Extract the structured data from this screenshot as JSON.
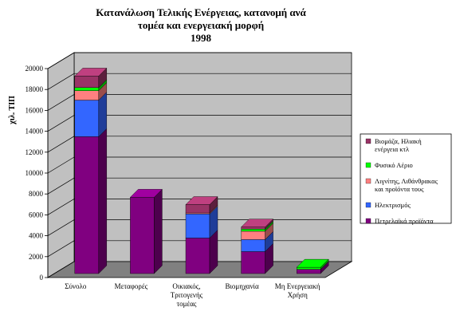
{
  "chart_data": {
    "type": "bar",
    "stacked": true,
    "three_d": true,
    "title_lines": [
      "Κατανάλωση Τελικής Ενέργειας, κατανομή ανά",
      "τομέα και ενεργειακή μορφή",
      "1998"
    ],
    "xlabel": "",
    "ylabel": "χιλ. ΤΙΠ",
    "ylim": [
      0,
      20000
    ],
    "yticks": [
      0,
      2000,
      4000,
      6000,
      8000,
      10000,
      12000,
      14000,
      16000,
      18000,
      20000
    ],
    "grid": true,
    "legend_position": "right",
    "categories": [
      [
        "Σύνολο"
      ],
      [
        "Μεταφορές"
      ],
      [
        "Οικιακός,",
        "Τριτογενής",
        "τομέας"
      ],
      [
        "Βιομηχανία"
      ],
      [
        "Μη Ενεργειακή",
        "Χρήση"
      ]
    ],
    "series": [
      {
        "name": "Πετρελαϊκά προϊόντα",
        "color": "#800080",
        "values": [
          13100,
          7300,
          3400,
          2100,
          400
        ]
      },
      {
        "name": "Ηλεκτρισμός",
        "color": "#3366ff",
        "values": [
          3500,
          0,
          2300,
          1150,
          0
        ]
      },
      {
        "name": "Λιγνίτης, Λιθάνθρακας και προϊόντα τους",
        "color": "#ff8080",
        "values": [
          900,
          0,
          100,
          800,
          0
        ]
      },
      {
        "name": "Φυσικό Αέριο",
        "color": "#00ff00",
        "values": [
          300,
          0,
          0,
          200,
          200
        ]
      },
      {
        "name": "Βιομάζα, Ηλιακή ενέργεια κτλ",
        "color": "#993366",
        "values": [
          1100,
          0,
          800,
          200,
          0
        ]
      }
    ],
    "legend": [
      {
        "lines": [
          "Βιομάζα, Ηλιακή",
          "ενέργεια κτλ"
        ],
        "color": "#993366"
      },
      {
        "lines": [
          "Φυσικό Αέριο"
        ],
        "color": "#00ff00"
      },
      {
        "lines": [
          "Λιγνίτης, Λιθάνθρακας",
          "και προϊόντα τους"
        ],
        "color": "#ff8080"
      },
      {
        "lines": [
          "Ηλεκτρισμός"
        ],
        "color": "#3366ff"
      },
      {
        "lines": [
          "Πετρελαϊκά προϊόντα"
        ],
        "color": "#800080"
      }
    ],
    "colors": {
      "back_wall": "#c0c0c0",
      "floor": "#808080",
      "gridline": "#000000"
    }
  }
}
